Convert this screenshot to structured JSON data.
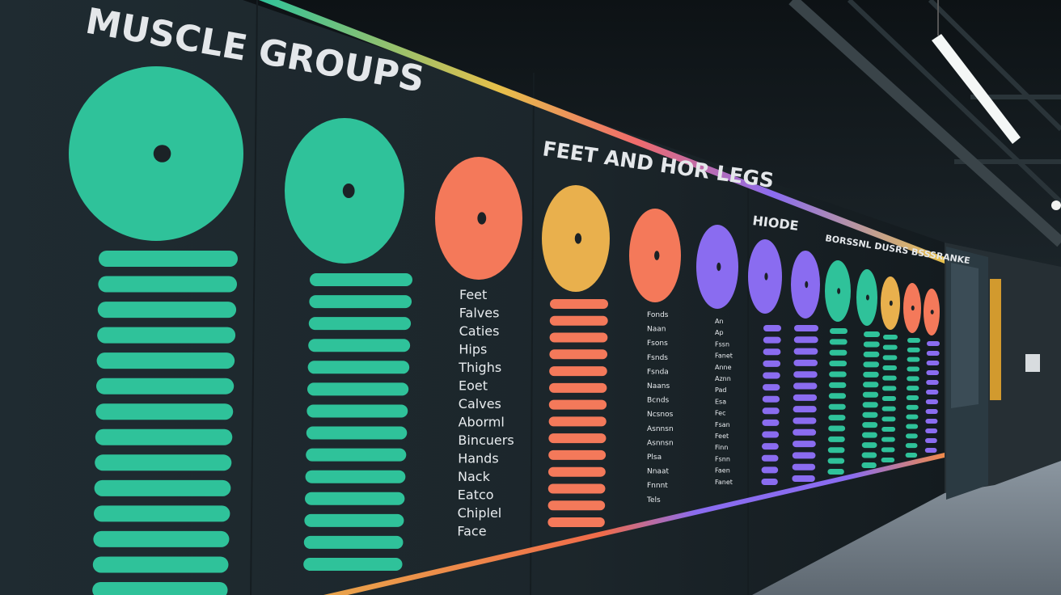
{
  "wall": {
    "title": "MUSCLE GROUPS",
    "subtitle": "FEET AND HOR LEGS",
    "heading_small": "HIODE",
    "heading_right": "BORSSNL DUSRS BSSSRANKE",
    "list_main": [
      "Feet",
      "Falves",
      "Caties",
      "Hips",
      "Thighs",
      "Eoet",
      "Calves",
      "Aborml",
      "Bincuers",
      "Hands",
      "Nack",
      "Eatco",
      "Chiplel",
      "Face"
    ],
    "list_mid": [
      "Fonds",
      "Naan",
      "Fsons",
      "Fsnds",
      "Fsnda",
      "Naans",
      "Bcnds",
      "Ncsnos",
      "Asnnsn",
      "Asnnsn",
      "Plsa",
      "Nnaat",
      "Fnnnt",
      "Tels"
    ],
    "list_right": [
      "An",
      "Ap",
      "Fssn",
      "Fanet",
      "Anne",
      "Aznn",
      "Pad",
      "Esa",
      "Fec",
      "Fsan",
      "Feet",
      "Finn",
      "Fsnn",
      "Faen",
      "Fanet"
    ],
    "colors": {
      "teal": "#2fc29a",
      "coral": "#f4795a",
      "gold": "#e9b04d",
      "violet": "#8a6cf0",
      "wall": "#1f2a30",
      "floor": "#6f7a84"
    },
    "icons": [
      "target-circle-icon",
      "ceiling-light-icon",
      "door-icon"
    ]
  }
}
